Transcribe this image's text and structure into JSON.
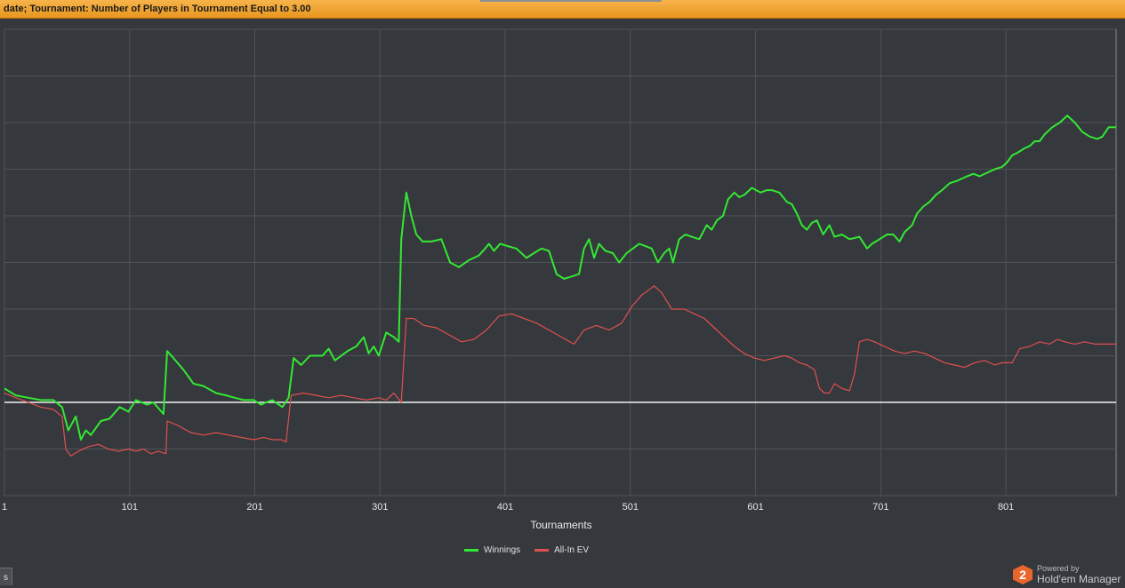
{
  "filter": {
    "text": "date; Tournament: Number of Players in Tournament Equal to 3.00"
  },
  "chart_data": {
    "type": "line",
    "x_label": "Tournaments",
    "x_ticks": [
      1,
      101,
      201,
      301,
      401,
      501,
      601,
      701,
      801
    ],
    "xlim": [
      1,
      889
    ],
    "ylim": [
      -2,
      8
    ],
    "zero_line": 0,
    "grid": true,
    "legend_position": "bottom",
    "series": [
      {
        "name": "Winnings",
        "color": "#33e833",
        "points": [
          [
            1,
            0.3
          ],
          [
            10,
            0.15
          ],
          [
            20,
            0.1
          ],
          [
            30,
            0.05
          ],
          [
            40,
            0.05
          ],
          [
            47,
            -0.1
          ],
          [
            52,
            -0.6
          ],
          [
            58,
            -0.3
          ],
          [
            62,
            -0.8
          ],
          [
            66,
            -0.6
          ],
          [
            70,
            -0.7
          ],
          [
            78,
            -0.4
          ],
          [
            85,
            -0.35
          ],
          [
            93,
            -0.1
          ],
          [
            100,
            -0.2
          ],
          [
            106,
            0.05
          ],
          [
            115,
            -0.05
          ],
          [
            120,
            0.0
          ],
          [
            128,
            -0.25
          ],
          [
            131,
            1.1
          ],
          [
            136,
            0.95
          ],
          [
            144,
            0.7
          ],
          [
            152,
            0.4
          ],
          [
            160,
            0.35
          ],
          [
            170,
            0.2
          ],
          [
            178,
            0.15
          ],
          [
            185,
            0.1
          ],
          [
            192,
            0.05
          ],
          [
            200,
            0.05
          ],
          [
            206,
            -0.05
          ],
          [
            210,
            0.0
          ],
          [
            215,
            0.05
          ],
          [
            223,
            -0.1
          ],
          [
            228,
            0.1
          ],
          [
            232,
            0.95
          ],
          [
            238,
            0.8
          ],
          [
            245,
            1.0
          ],
          [
            255,
            1.0
          ],
          [
            260,
            1.15
          ],
          [
            265,
            0.9
          ],
          [
            275,
            1.1
          ],
          [
            282,
            1.2
          ],
          [
            288,
            1.4
          ],
          [
            292,
            1.05
          ],
          [
            296,
            1.2
          ],
          [
            300,
            1.0
          ],
          [
            306,
            1.5
          ],
          [
            312,
            1.4
          ],
          [
            316,
            1.3
          ],
          [
            318,
            3.5
          ],
          [
            322,
            4.5
          ],
          [
            326,
            4.0
          ],
          [
            330,
            3.6
          ],
          [
            335,
            3.45
          ],
          [
            342,
            3.45
          ],
          [
            350,
            3.5
          ],
          [
            357,
            3.0
          ],
          [
            364,
            2.9
          ],
          [
            372,
            3.05
          ],
          [
            380,
            3.15
          ],
          [
            385,
            3.3
          ],
          [
            388,
            3.4
          ],
          [
            392,
            3.25
          ],
          [
            397,
            3.4
          ],
          [
            403,
            3.35
          ],
          [
            410,
            3.3
          ],
          [
            418,
            3.1
          ],
          [
            424,
            3.2
          ],
          [
            430,
            3.3
          ],
          [
            436,
            3.25
          ],
          [
            442,
            2.75
          ],
          [
            448,
            2.65
          ],
          [
            454,
            2.7
          ],
          [
            460,
            2.75
          ],
          [
            464,
            3.3
          ],
          [
            468,
            3.5
          ],
          [
            472,
            3.1
          ],
          [
            476,
            3.4
          ],
          [
            481,
            3.25
          ],
          [
            487,
            3.2
          ],
          [
            492,
            3.0
          ],
          [
            498,
            3.2
          ],
          [
            503,
            3.3
          ],
          [
            508,
            3.4
          ],
          [
            513,
            3.35
          ],
          [
            518,
            3.3
          ],
          [
            523,
            3.0
          ],
          [
            528,
            3.2
          ],
          [
            532,
            3.3
          ],
          [
            535,
            3.0
          ],
          [
            540,
            3.5
          ],
          [
            545,
            3.6
          ],
          [
            550,
            3.55
          ],
          [
            556,
            3.5
          ],
          [
            562,
            3.8
          ],
          [
            566,
            3.7
          ],
          [
            570,
            3.9
          ],
          [
            575,
            4.0
          ],
          [
            579,
            4.35
          ],
          [
            584,
            4.5
          ],
          [
            588,
            4.4
          ],
          [
            592,
            4.45
          ],
          [
            598,
            4.6
          ],
          [
            605,
            4.5
          ],
          [
            610,
            4.55
          ],
          [
            614,
            4.55
          ],
          [
            620,
            4.5
          ],
          [
            626,
            4.3
          ],
          [
            630,
            4.25
          ],
          [
            634,
            4.05
          ],
          [
            638,
            3.8
          ],
          [
            642,
            3.7
          ],
          [
            646,
            3.85
          ],
          [
            650,
            3.9
          ],
          [
            655,
            3.6
          ],
          [
            660,
            3.8
          ],
          [
            664,
            3.55
          ],
          [
            670,
            3.6
          ],
          [
            676,
            3.5
          ],
          [
            684,
            3.55
          ],
          [
            690,
            3.3
          ],
          [
            694,
            3.4
          ],
          [
            700,
            3.5
          ],
          [
            706,
            3.6
          ],
          [
            711,
            3.6
          ],
          [
            716,
            3.45
          ],
          [
            720,
            3.65
          ],
          [
            726,
            3.8
          ],
          [
            730,
            4.05
          ],
          [
            735,
            4.2
          ],
          [
            740,
            4.3
          ],
          [
            745,
            4.45
          ],
          [
            750,
            4.55
          ],
          [
            756,
            4.7
          ],
          [
            762,
            4.75
          ],
          [
            766,
            4.8
          ],
          [
            770,
            4.85
          ],
          [
            775,
            4.9
          ],
          [
            780,
            4.85
          ],
          [
            788,
            4.95
          ],
          [
            792,
            5.0
          ],
          [
            798,
            5.05
          ],
          [
            802,
            5.15
          ],
          [
            806,
            5.3
          ],
          [
            810,
            5.35
          ],
          [
            816,
            5.45
          ],
          [
            820,
            5.5
          ],
          [
            824,
            5.6
          ],
          [
            828,
            5.6
          ],
          [
            832,
            5.75
          ],
          [
            838,
            5.9
          ],
          [
            844,
            6.0
          ],
          [
            850,
            6.15
          ],
          [
            856,
            6.0
          ],
          [
            862,
            5.8
          ],
          [
            868,
            5.7
          ],
          [
            874,
            5.65
          ],
          [
            878,
            5.7
          ],
          [
            883,
            5.9
          ],
          [
            889,
            5.9
          ]
        ]
      },
      {
        "name": "All-In EV",
        "color": "#e05050",
        "points": [
          [
            1,
            0.2
          ],
          [
            10,
            0.1
          ],
          [
            20,
            0.0
          ],
          [
            30,
            -0.1
          ],
          [
            40,
            -0.15
          ],
          [
            47,
            -0.3
          ],
          [
            50,
            -1.0
          ],
          [
            54,
            -1.15
          ],
          [
            60,
            -1.05
          ],
          [
            68,
            -0.95
          ],
          [
            76,
            -0.9
          ],
          [
            84,
            -1.0
          ],
          [
            92,
            -1.05
          ],
          [
            100,
            -1.0
          ],
          [
            106,
            -1.05
          ],
          [
            112,
            -1.0
          ],
          [
            118,
            -1.1
          ],
          [
            124,
            -1.05
          ],
          [
            130,
            -1.1
          ],
          [
            131,
            -0.4
          ],
          [
            140,
            -0.5
          ],
          [
            150,
            -0.65
          ],
          [
            160,
            -0.7
          ],
          [
            170,
            -0.65
          ],
          [
            180,
            -0.7
          ],
          [
            190,
            -0.75
          ],
          [
            200,
            -0.8
          ],
          [
            208,
            -0.75
          ],
          [
            215,
            -0.8
          ],
          [
            222,
            -0.8
          ],
          [
            226,
            -0.85
          ],
          [
            230,
            0.15
          ],
          [
            240,
            0.2
          ],
          [
            250,
            0.15
          ],
          [
            260,
            0.1
          ],
          [
            270,
            0.15
          ],
          [
            280,
            0.1
          ],
          [
            290,
            0.05
          ],
          [
            300,
            0.1
          ],
          [
            306,
            0.05
          ],
          [
            312,
            0.2
          ],
          [
            318,
            0.0
          ],
          [
            322,
            1.8
          ],
          [
            328,
            1.8
          ],
          [
            336,
            1.65
          ],
          [
            346,
            1.6
          ],
          [
            356,
            1.45
          ],
          [
            366,
            1.3
          ],
          [
            376,
            1.35
          ],
          [
            386,
            1.55
          ],
          [
            396,
            1.85
          ],
          [
            406,
            1.9
          ],
          [
            416,
            1.8
          ],
          [
            426,
            1.7
          ],
          [
            436,
            1.55
          ],
          [
            446,
            1.4
          ],
          [
            456,
            1.25
          ],
          [
            464,
            1.55
          ],
          [
            474,
            1.65
          ],
          [
            484,
            1.55
          ],
          [
            494,
            1.7
          ],
          [
            502,
            2.05
          ],
          [
            510,
            2.3
          ],
          [
            520,
            2.5
          ],
          [
            526,
            2.35
          ],
          [
            534,
            2.0
          ],
          [
            544,
            2.0
          ],
          [
            552,
            1.9
          ],
          [
            560,
            1.8
          ],
          [
            568,
            1.6
          ],
          [
            576,
            1.4
          ],
          [
            584,
            1.2
          ],
          [
            592,
            1.05
          ],
          [
            600,
            0.95
          ],
          [
            608,
            0.9
          ],
          [
            616,
            0.95
          ],
          [
            624,
            1.0
          ],
          [
            630,
            0.95
          ],
          [
            636,
            0.85
          ],
          [
            642,
            0.8
          ],
          [
            648,
            0.7
          ],
          [
            652,
            0.3
          ],
          [
            656,
            0.2
          ],
          [
            660,
            0.2
          ],
          [
            664,
            0.4
          ],
          [
            670,
            0.3
          ],
          [
            676,
            0.25
          ],
          [
            680,
            0.6
          ],
          [
            684,
            1.3
          ],
          [
            690,
            1.35
          ],
          [
            696,
            1.3
          ],
          [
            704,
            1.2
          ],
          [
            712,
            1.1
          ],
          [
            720,
            1.05
          ],
          [
            728,
            1.1
          ],
          [
            736,
            1.05
          ],
          [
            744,
            0.95
          ],
          [
            752,
            0.85
          ],
          [
            760,
            0.8
          ],
          [
            768,
            0.75
          ],
          [
            776,
            0.85
          ],
          [
            784,
            0.9
          ],
          [
            792,
            0.8
          ],
          [
            798,
            0.85
          ],
          [
            806,
            0.85
          ],
          [
            812,
            1.15
          ],
          [
            820,
            1.2
          ],
          [
            828,
            1.3
          ],
          [
            836,
            1.25
          ],
          [
            842,
            1.35
          ],
          [
            848,
            1.3
          ],
          [
            856,
            1.25
          ],
          [
            864,
            1.3
          ],
          [
            872,
            1.25
          ],
          [
            880,
            1.25
          ],
          [
            889,
            1.25
          ]
        ]
      }
    ]
  },
  "legend": {
    "winnings": "Winnings",
    "allin": "All-In EV"
  },
  "corner_tab": "s",
  "brand": {
    "powered": "Powered by",
    "name": "Hold'em Manager",
    "logo_glyph": "2"
  }
}
